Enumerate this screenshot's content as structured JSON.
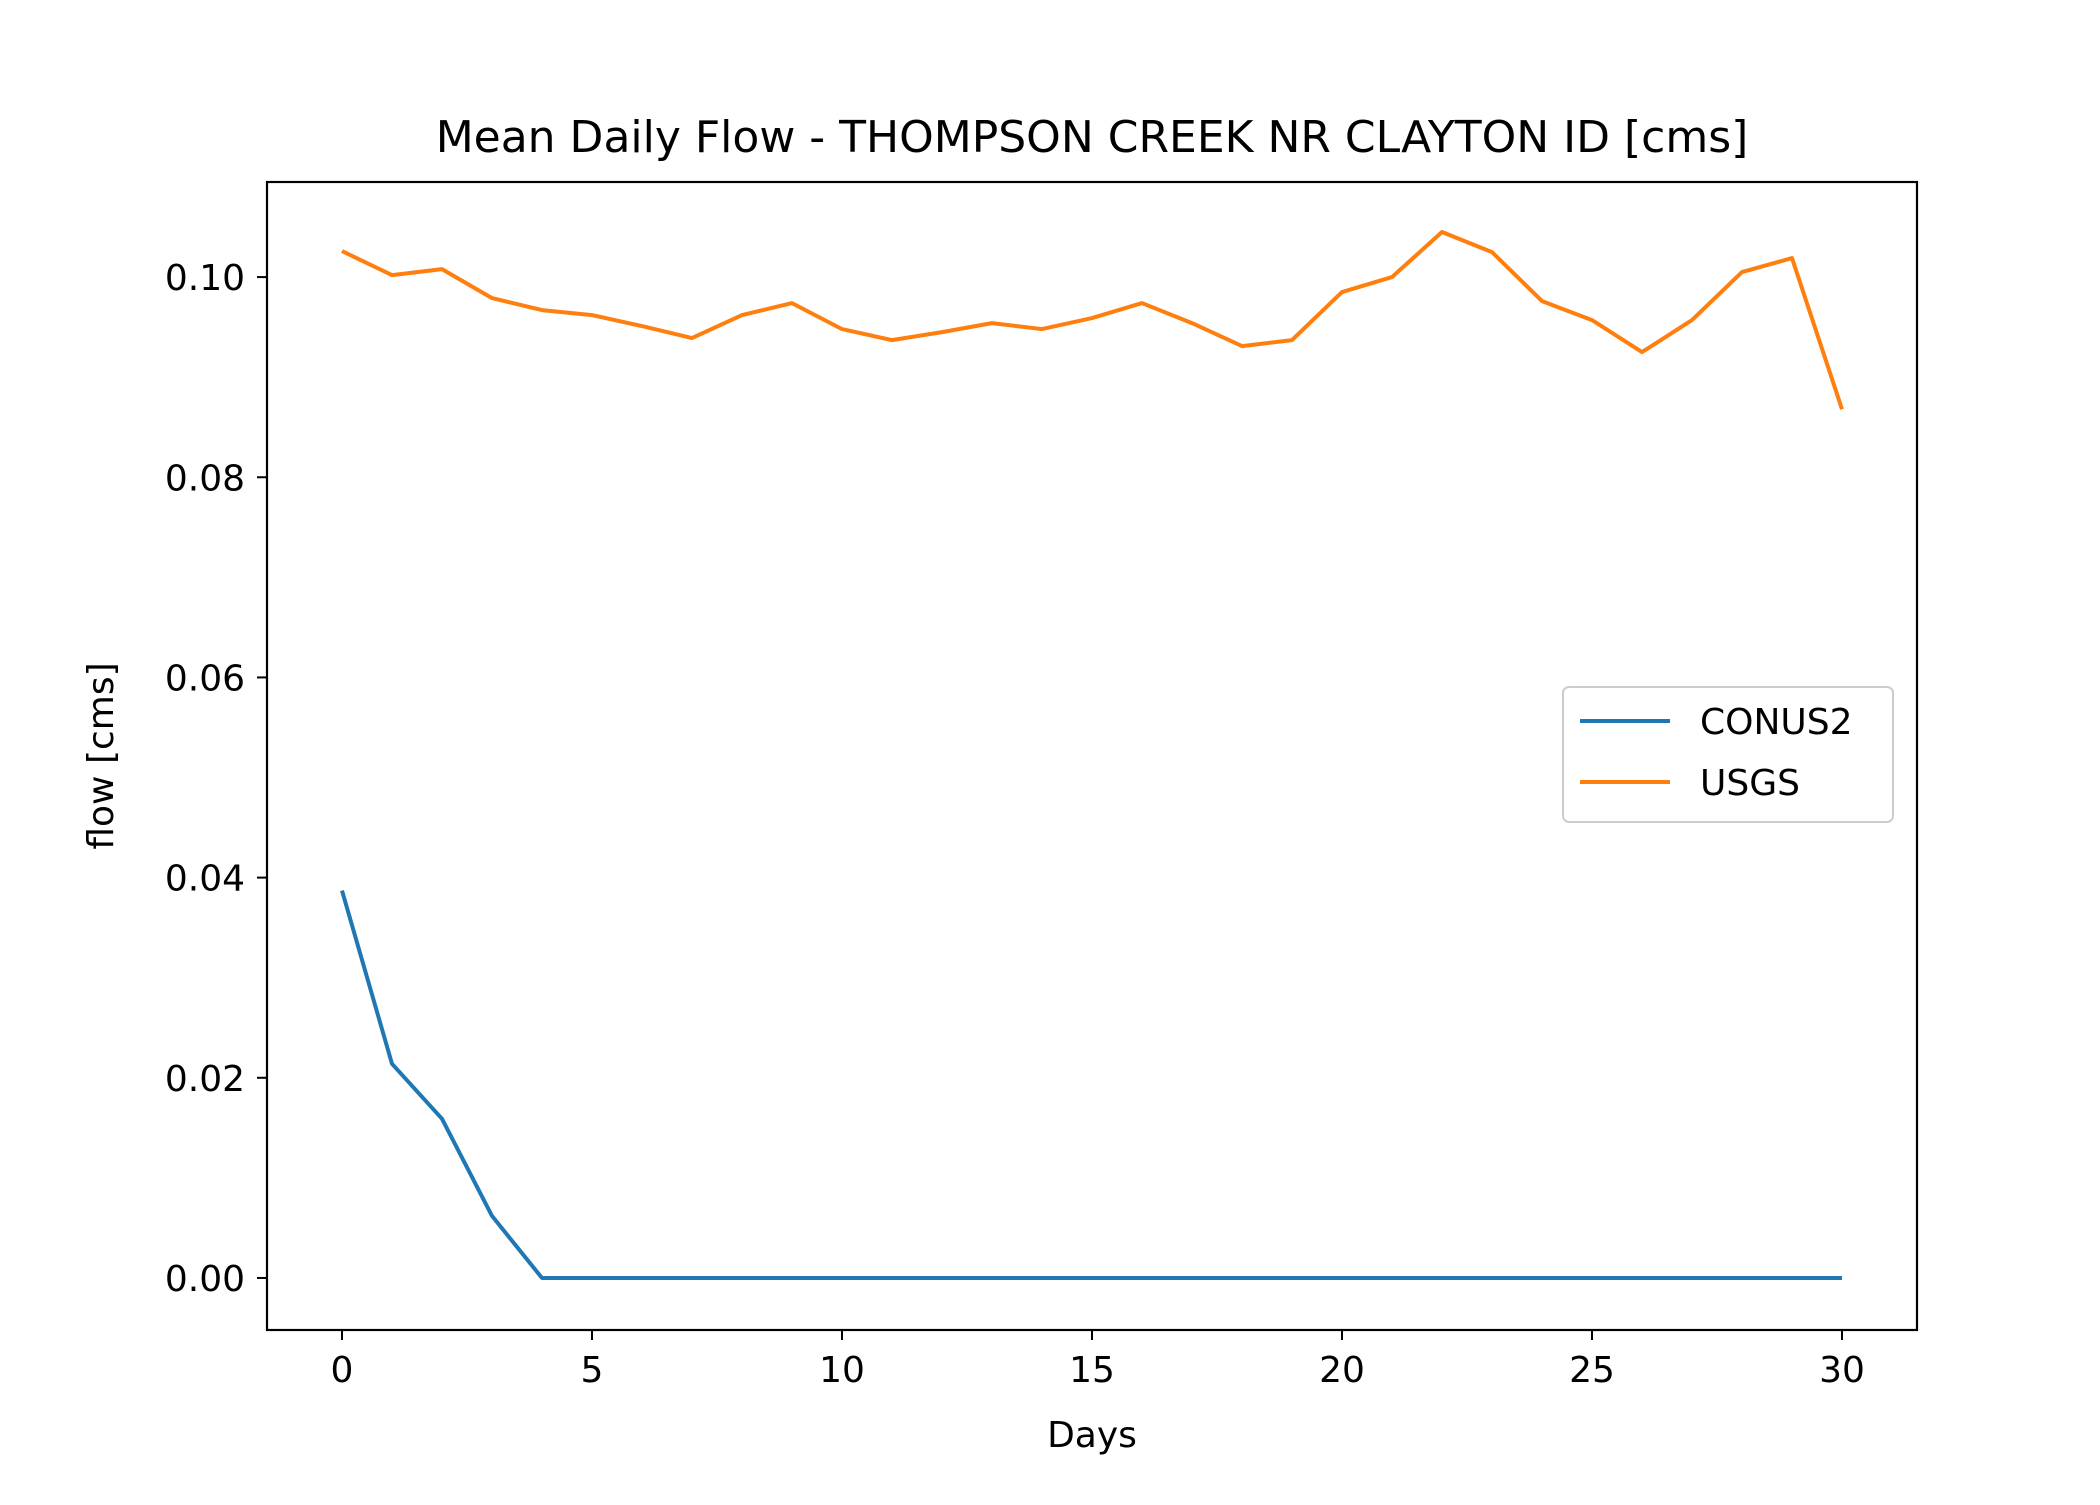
{
  "chart_data": {
    "type": "line",
    "title": "Mean Daily Flow - THOMPSON CREEK NR CLAYTON ID [cms]",
    "xlabel": "Days",
    "ylabel": "flow [cms]",
    "xlim": [
      -1.5,
      31.5
    ],
    "ylim": [
      -0.0052,
      0.1095
    ],
    "xticks": [
      0,
      5,
      10,
      15,
      20,
      25,
      30
    ],
    "xtick_labels": [
      "0",
      "5",
      "10",
      "15",
      "20",
      "25",
      "30"
    ],
    "yticks": [
      0.0,
      0.02,
      0.04,
      0.06,
      0.08,
      0.1
    ],
    "ytick_labels": [
      "0.00",
      "0.02",
      "0.04",
      "0.06",
      "0.08",
      "0.10"
    ],
    "grid": false,
    "legend": "center-right",
    "x": [
      0,
      1,
      2,
      3,
      4,
      5,
      6,
      7,
      8,
      9,
      10,
      11,
      12,
      13,
      14,
      15,
      16,
      17,
      18,
      19,
      20,
      21,
      22,
      23,
      24,
      25,
      26,
      27,
      28,
      29,
      30
    ],
    "series": [
      {
        "name": "CONUS2",
        "color": "#1f77b4",
        "values": [
          0.0387,
          0.0214,
          0.0159,
          0.0062,
          0.0,
          0.0,
          0.0,
          0.0,
          0.0,
          0.0,
          0.0,
          0.0,
          0.0,
          0.0,
          0.0,
          0.0,
          0.0,
          0.0,
          0.0,
          0.0,
          0.0,
          0.0,
          0.0,
          0.0,
          0.0,
          0.0,
          0.0,
          0.0,
          0.0,
          0.0,
          0.0
        ]
      },
      {
        "name": "USGS",
        "color": "#ff7f0e",
        "values": [
          0.1026,
          0.1002,
          0.1008,
          0.0979,
          0.0967,
          0.0962,
          0.0951,
          0.0939,
          0.0962,
          0.0974,
          0.0948,
          0.0937,
          0.0945,
          0.0954,
          0.0948,
          0.0959,
          0.0974,
          0.0954,
          0.0931,
          0.0937,
          0.0985,
          0.1,
          0.1045,
          0.1025,
          0.0976,
          0.0957,
          0.0925,
          0.0957,
          0.1005,
          0.1019,
          0.0868
        ]
      }
    ]
  }
}
